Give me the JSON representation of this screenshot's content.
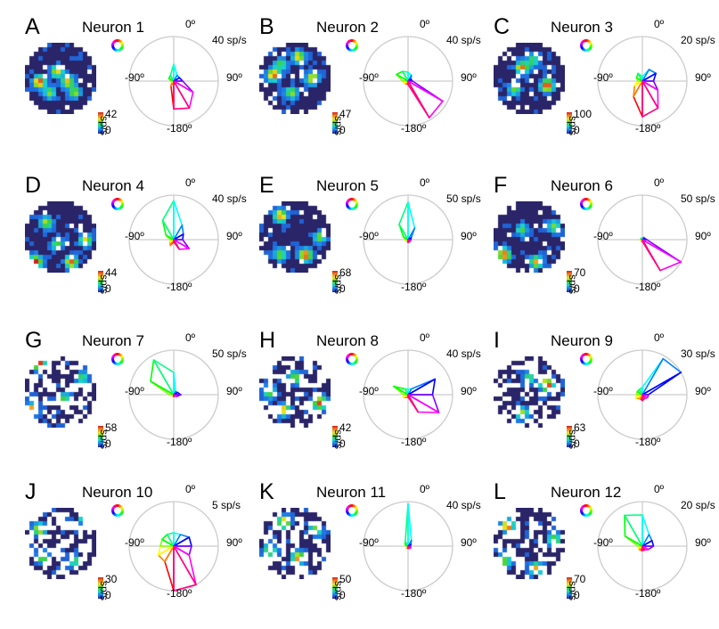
{
  "colors": {
    "axis": "#cccccc",
    "title_text": "#000000"
  },
  "panels": [
    {
      "letter": "A",
      "title": "Neuron 1",
      "cmax": "42",
      "cmin": "0",
      "unit": "sp/s",
      "scale_label": "40 sp/s",
      "rmax": 40,
      "peaks": [
        [
          0.2,
          0.55,
          0.9
        ],
        [
          0.45,
          0.4,
          0.6
        ],
        [
          0.6,
          0.55,
          0.7
        ],
        [
          0.7,
          0.7,
          0.5
        ],
        [
          0.35,
          0.7,
          0.5
        ]
      ]
    },
    {
      "letter": "B",
      "title": "Neuron 2",
      "cmax": "47",
      "cmin": "0",
      "unit": "sp/s",
      "scale_label": "40 sp/s",
      "rmax": 40,
      "peaks": [
        [
          0.2,
          0.45,
          0.9
        ],
        [
          0.55,
          0.2,
          0.7
        ],
        [
          0.75,
          0.5,
          0.7
        ],
        [
          0.45,
          0.7,
          0.5
        ],
        [
          0.3,
          0.3,
          0.4
        ]
      ]
    },
    {
      "letter": "C",
      "title": "Neuron 3",
      "cmax": "100",
      "cmin": "0",
      "unit": "sp/s",
      "scale_label": "20 sp/s",
      "rmax": 20,
      "peaks": [
        [
          0.4,
          0.35,
          0.8
        ],
        [
          0.75,
          0.6,
          1.0
        ],
        [
          0.3,
          0.65,
          0.5
        ],
        [
          0.55,
          0.25,
          0.4
        ]
      ]
    },
    {
      "letter": "D",
      "title": "Neuron 4",
      "cmax": "44",
      "cmin": "0",
      "unit": "sp/s",
      "scale_label": "40 sp/s",
      "rmax": 40,
      "peaks": [
        [
          0.15,
          0.85,
          1.0
        ],
        [
          0.65,
          0.85,
          0.8
        ],
        [
          0.3,
          0.3,
          0.6
        ],
        [
          0.85,
          0.55,
          0.6
        ],
        [
          0.45,
          0.6,
          0.4
        ]
      ]
    },
    {
      "letter": "E",
      "title": "Neuron 5",
      "cmax": "68",
      "cmin": "0",
      "unit": "sp/s",
      "scale_label": "50 sp/s",
      "rmax": 50,
      "peaks": [
        [
          0.3,
          0.2,
          0.8
        ],
        [
          0.65,
          0.75,
          0.9
        ],
        [
          0.3,
          0.75,
          0.5
        ],
        [
          0.85,
          0.5,
          0.5
        ]
      ]
    },
    {
      "letter": "F",
      "title": "Neuron 6",
      "cmax": "70",
      "cmin": "0",
      "unit": "sp/s",
      "scale_label": "50 sp/s",
      "rmax": 50,
      "peaks": [
        [
          0.15,
          0.75,
          0.9
        ],
        [
          0.6,
          0.85,
          0.7
        ],
        [
          0.85,
          0.35,
          0.5
        ],
        [
          0.4,
          0.4,
          0.4
        ]
      ]
    },
    {
      "letter": "G",
      "title": "Neuron 7",
      "cmax": "58",
      "cmin": "0",
      "unit": "sp/s",
      "scale_label": "50 sp/s",
      "rmax": 50,
      "peaks": [
        [
          0.2,
          0.1,
          0.9
        ],
        [
          0.1,
          0.75,
          0.8
        ],
        [
          0.55,
          0.6,
          0.4
        ],
        [
          0.8,
          0.3,
          0.4
        ]
      ]
    },
    {
      "letter": "H",
      "title": "Neuron 8",
      "cmax": "42",
      "cmin": "0",
      "unit": "sp/s",
      "scale_label": "40 sp/s",
      "rmax": 40,
      "peaks": [
        [
          0.85,
          0.65,
          0.9
        ],
        [
          0.35,
          0.75,
          0.7
        ],
        [
          0.5,
          0.3,
          0.5
        ],
        [
          0.15,
          0.5,
          0.5
        ]
      ]
    },
    {
      "letter": "I",
      "title": "Neuron 9",
      "cmax": "63",
      "cmin": "0",
      "unit": "sp/s",
      "scale_label": "30 sp/s",
      "rmax": 30,
      "peaks": [
        [
          0.75,
          0.4,
          1.0
        ],
        [
          0.4,
          0.8,
          0.5
        ],
        [
          0.5,
          0.3,
          0.4
        ]
      ]
    },
    {
      "letter": "J",
      "title": "Neuron 10",
      "cmax": "30",
      "cmin": "0",
      "unit": "sp/s",
      "scale_label": "5 sp/s",
      "rmax": 5,
      "peaks": [
        [
          0.2,
          0.3,
          0.7
        ],
        [
          0.85,
          0.15,
          0.6
        ],
        [
          0.25,
          0.7,
          0.5
        ],
        [
          0.7,
          0.75,
          0.4
        ]
      ]
    },
    {
      "letter": "K",
      "title": "Neuron 11",
      "cmax": "50",
      "cmin": "0",
      "unit": "sp/s",
      "scale_label": "40 sp/s",
      "rmax": 40,
      "peaks": [
        [
          0.35,
          0.2,
          0.8
        ],
        [
          0.55,
          0.7,
          0.8
        ],
        [
          0.15,
          0.6,
          0.6
        ],
        [
          0.8,
          0.3,
          0.5
        ]
      ]
    },
    {
      "letter": "L",
      "title": "Neuron 12",
      "cmax": "70",
      "cmin": "0",
      "unit": "sp/s",
      "scale_label": "20 sp/s",
      "rmax": 20,
      "peaks": [
        [
          0.2,
          0.25,
          0.9
        ],
        [
          0.6,
          0.85,
          0.7
        ],
        [
          0.85,
          0.45,
          0.6
        ],
        [
          0.15,
          0.75,
          0.5
        ]
      ]
    }
  ],
  "polar": {
    "zero_label": "0º",
    "left_label": "-90º",
    "right_label": "90º",
    "bottom_label": "-180º",
    "angles_deg": [
      -180,
      -150,
      -120,
      -90,
      -60,
      -30,
      0,
      30,
      60,
      90,
      120,
      150
    ],
    "curve_colors": [
      "#ff0000",
      "#ff8000",
      "#ffff00",
      "#80ff00",
      "#00ff00",
      "#00ff80",
      "#00ffff",
      "#0080ff",
      "#0000ff",
      "#8000ff",
      "#ff00ff",
      "#ff0080"
    ],
    "series": [
      [
        25,
        5,
        2,
        3,
        5,
        6,
        15,
        6,
        6,
        8,
        20,
        28
      ],
      [
        3,
        3,
        4,
        5,
        12,
        10,
        8,
        6,
        3,
        4,
        36,
        38
      ],
      [
        16,
        8,
        4,
        2,
        3,
        4,
        2,
        6,
        7,
        5,
        8,
        14
      ],
      [
        2,
        6,
        4,
        3,
        8,
        20,
        35,
        15,
        10,
        8,
        16,
        10
      ],
      [
        3,
        2,
        3,
        3,
        6,
        20,
        42,
        15,
        4,
        3,
        3,
        3
      ],
      [
        2,
        2,
        2,
        2,
        2,
        2,
        2,
        3,
        3,
        5,
        50,
        40
      ],
      [
        2,
        2,
        2,
        5,
        30,
        45,
        25,
        4,
        5,
        8,
        4,
        2
      ],
      [
        2,
        3,
        5,
        4,
        15,
        6,
        5,
        6,
        28,
        22,
        32,
        18
      ],
      [
        4,
        3,
        5,
        4,
        4,
        4,
        5,
        28,
        30,
        4,
        4,
        3
      ],
      [
        5,
        2,
        2,
        1.5,
        1.5,
        1.5,
        1.5,
        1.5,
        2,
        2,
        2,
        5
      ],
      [
        2,
        2,
        2,
        2,
        3,
        5,
        38,
        6,
        3,
        2,
        3,
        2
      ],
      [
        2,
        2,
        2,
        2,
        9,
        16,
        14,
        6,
        5,
        5,
        3,
        2
      ]
    ]
  },
  "chart_data": [
    {
      "type": "polar-line",
      "title": "Neuron 1",
      "rlim": [
        0,
        40
      ],
      "theta": [
        -180,
        -150,
        -120,
        -90,
        -60,
        -30,
        0,
        30,
        60,
        90,
        120,
        150
      ],
      "r": [
        25,
        5,
        2,
        3,
        5,
        6,
        15,
        6,
        6,
        8,
        20,
        28
      ]
    },
    {
      "type": "polar-line",
      "title": "Neuron 2",
      "rlim": [
        0,
        40
      ],
      "theta": [
        -180,
        -150,
        -120,
        -90,
        -60,
        -30,
        0,
        30,
        60,
        90,
        120,
        150
      ],
      "r": [
        3,
        3,
        4,
        5,
        12,
        10,
        8,
        6,
        3,
        4,
        36,
        38
      ]
    },
    {
      "type": "polar-line",
      "title": "Neuron 3",
      "rlim": [
        0,
        20
      ],
      "theta": [
        -180,
        -150,
        -120,
        -90,
        -60,
        -30,
        0,
        30,
        60,
        90,
        120,
        150
      ],
      "r": [
        16,
        8,
        4,
        2,
        3,
        4,
        2,
        6,
        7,
        5,
        8,
        14
      ]
    },
    {
      "type": "polar-line",
      "title": "Neuron 4",
      "rlim": [
        0,
        40
      ],
      "theta": [
        -180,
        -150,
        -120,
        -90,
        -60,
        -30,
        0,
        30,
        60,
        90,
        120,
        150
      ],
      "r": [
        2,
        6,
        4,
        3,
        8,
        20,
        35,
        15,
        10,
        8,
        16,
        10
      ]
    },
    {
      "type": "polar-line",
      "title": "Neuron 5",
      "rlim": [
        0,
        50
      ],
      "theta": [
        -180,
        -150,
        -120,
        -90,
        -60,
        -30,
        0,
        30,
        60,
        90,
        120,
        150
      ],
      "r": [
        3,
        2,
        3,
        3,
        6,
        20,
        42,
        15,
        4,
        3,
        3,
        3
      ]
    },
    {
      "type": "polar-line",
      "title": "Neuron 6",
      "rlim": [
        0,
        50
      ],
      "theta": [
        -180,
        -150,
        -120,
        -90,
        -60,
        -30,
        0,
        30,
        60,
        90,
        120,
        150
      ],
      "r": [
        2,
        2,
        2,
        2,
        2,
        2,
        2,
        3,
        3,
        5,
        50,
        40
      ]
    },
    {
      "type": "polar-line",
      "title": "Neuron 7",
      "rlim": [
        0,
        50
      ],
      "theta": [
        -180,
        -150,
        -120,
        -90,
        -60,
        -30,
        0,
        30,
        60,
        90,
        120,
        150
      ],
      "r": [
        2,
        2,
        2,
        5,
        30,
        45,
        25,
        4,
        5,
        8,
        4,
        2
      ]
    },
    {
      "type": "polar-line",
      "title": "Neuron 8",
      "rlim": [
        0,
        40
      ],
      "theta": [
        -180,
        -150,
        -120,
        -90,
        -60,
        -30,
        0,
        30,
        60,
        90,
        120,
        150
      ],
      "r": [
        2,
        3,
        5,
        4,
        15,
        6,
        5,
        6,
        28,
        22,
        32,
        18
      ]
    },
    {
      "type": "polar-line",
      "title": "Neuron 9",
      "rlim": [
        0,
        30
      ],
      "theta": [
        -180,
        -150,
        -120,
        -90,
        -60,
        -30,
        0,
        30,
        60,
        90,
        120,
        150
      ],
      "r": [
        4,
        3,
        5,
        4,
        4,
        4,
        5,
        28,
        30,
        4,
        4,
        3
      ]
    },
    {
      "type": "polar-line",
      "title": "Neuron 10",
      "rlim": [
        0,
        5
      ],
      "theta": [
        -180,
        -150,
        -120,
        -90,
        -60,
        -30,
        0,
        30,
        60,
        90,
        120,
        150
      ],
      "r": [
        5,
        2,
        2,
        1.5,
        1.5,
        1.5,
        1.5,
        1.5,
        2,
        2,
        2,
        5
      ]
    },
    {
      "type": "polar-line",
      "title": "Neuron 11",
      "rlim": [
        0,
        40
      ],
      "theta": [
        -180,
        -150,
        -120,
        -90,
        -60,
        -30,
        0,
        30,
        60,
        90,
        120,
        150
      ],
      "r": [
        2,
        2,
        2,
        2,
        3,
        5,
        38,
        6,
        3,
        2,
        3,
        2
      ]
    },
    {
      "type": "polar-line",
      "title": "Neuron 12",
      "rlim": [
        0,
        20
      ],
      "theta": [
        -180,
        -150,
        -120,
        -90,
        -60,
        -30,
        0,
        30,
        60,
        90,
        120,
        150
      ],
      "r": [
        2,
        2,
        2,
        2,
        9,
        16,
        14,
        6,
        5,
        5,
        3,
        2
      ]
    }
  ]
}
